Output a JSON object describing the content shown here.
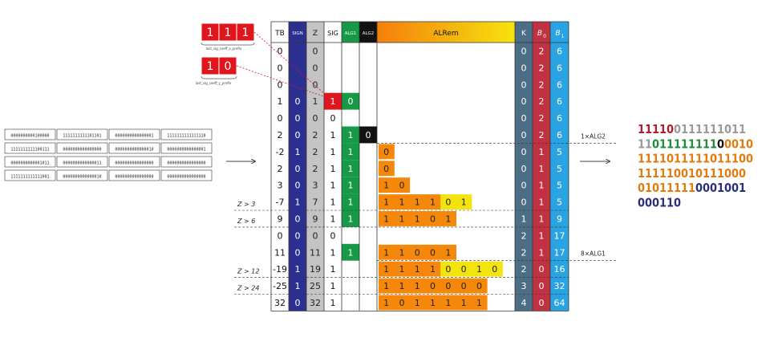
{
  "prefix_x": {
    "bits": [
      "1",
      "1",
      "1"
    ],
    "label": "last_sig_coeff_x_prefix"
  },
  "prefix_y": {
    "bits": [
      "1",
      "0"
    ],
    "label": "last_sig_coeff_y_prefix"
  },
  "input_table": [
    [
      "0000000000100000",
      "1111111111101101",
      "0000000000000001",
      "1111111111111110"
    ],
    [
      "1111111111100111",
      "0000000000000000",
      "0000000000000010",
      "0000000000000001"
    ],
    [
      "0000000000001011",
      "0000000000000011",
      "0000000000000000",
      "0000000000000000"
    ],
    [
      "1111111111111001",
      "0000000000000010",
      "0000000000000000",
      "0000000000000000"
    ]
  ],
  "headers": {
    "tb": "TB",
    "sign": "SIGN",
    "z": "Z",
    "sig": "SIG",
    "alg1": "ALG1",
    "alg2": "ALG2",
    "alrem": "ALRem",
    "k": "K",
    "b0": "B",
    "b0_sub": "0",
    "b1": "B",
    "b1_sub": "1"
  },
  "rows": [
    {
      "tb": "0",
      "sign": "",
      "z": "0",
      "sig": "",
      "alg1": "",
      "alg2": "",
      "alrem": [],
      "k": "0",
      "b0": "2",
      "b1": "6"
    },
    {
      "tb": "0",
      "sign": "",
      "z": "0",
      "sig": "",
      "alg1": "",
      "alg2": "",
      "alrem": [],
      "k": "0",
      "b0": "2",
      "b1": "6"
    },
    {
      "tb": "0",
      "sign": "",
      "z": "0",
      "sig": "",
      "alg1": "",
      "alg2": "",
      "alrem": [],
      "k": "0",
      "b0": "2",
      "b1": "6"
    },
    {
      "tb": "1",
      "sign": "0",
      "z": "1",
      "sig": "1",
      "alg1": "0",
      "alg2": "",
      "alrem": [],
      "k": "0",
      "b0": "2",
      "b1": "6"
    },
    {
      "tb": "0",
      "sign": "0",
      "z": "0",
      "sig": "0",
      "alg1": "",
      "alg2": "",
      "alrem": [],
      "k": "0",
      "b0": "2",
      "b1": "6"
    },
    {
      "tb": "2",
      "sign": "0",
      "z": "2",
      "sig": "1",
      "alg1": "1",
      "alg2": "0",
      "alrem": [],
      "k": "0",
      "b0": "2",
      "b1": "6"
    },
    {
      "tb": "-2",
      "sign": "1",
      "z": "2",
      "sig": "1",
      "alg1": "1",
      "alg2": "",
      "alrem": [
        "0"
      ],
      "k": "0",
      "b0": "1",
      "b1": "5"
    },
    {
      "tb": "2",
      "sign": "0",
      "z": "2",
      "sig": "1",
      "alg1": "1",
      "alg2": "",
      "alrem": [
        "0"
      ],
      "k": "0",
      "b0": "1",
      "b1": "5"
    },
    {
      "tb": "3",
      "sign": "0",
      "z": "3",
      "sig": "1",
      "alg1": "1",
      "alg2": "",
      "alrem": [
        "1",
        "0"
      ],
      "k": "0",
      "b0": "1",
      "b1": "5"
    },
    {
      "tb": "-7",
      "sign": "1",
      "z": "7",
      "sig": "1",
      "alg1": "1",
      "alg2": "",
      "alrem": [
        "1",
        "1",
        "1",
        "1",
        "0",
        "1"
      ],
      "k": "0",
      "b0": "1",
      "b1": "5"
    },
    {
      "tb": "9",
      "sign": "0",
      "z": "9",
      "sig": "1",
      "alg1": "1",
      "alg2": "",
      "alrem": [
        "1",
        "1",
        "1",
        "0",
        "1"
      ],
      "k": "1",
      "b0": "1",
      "b1": "9"
    },
    {
      "tb": "0",
      "sign": "0",
      "z": "0",
      "sig": "0",
      "alg1": "",
      "alg2": "",
      "alrem": [],
      "k": "2",
      "b0": "1",
      "b1": "17"
    },
    {
      "tb": "11",
      "sign": "0",
      "z": "11",
      "sig": "1",
      "alg1": "1",
      "alg2": "",
      "alrem": [
        "1",
        "1",
        "0",
        "0",
        "1"
      ],
      "k": "2",
      "b0": "1",
      "b1": "17"
    },
    {
      "tb": "-19",
      "sign": "1",
      "z": "19",
      "sig": "1",
      "alg1": "",
      "alg2": "",
      "alrem": [
        "1",
        "1",
        "1",
        "1",
        "0",
        "0",
        "1",
        "0"
      ],
      "k": "2",
      "b0": "0",
      "b1": "16"
    },
    {
      "tb": "-25",
      "sign": "1",
      "z": "25",
      "sig": "1",
      "alg1": "",
      "alg2": "",
      "alrem": [
        "1",
        "1",
        "1",
        "0",
        "0",
        "0",
        "0"
      ],
      "k": "3",
      "b0": "0",
      "b1": "32"
    },
    {
      "tb": "32",
      "sign": "0",
      "z": "32",
      "sig": "1",
      "alg1": "",
      "alg2": "",
      "alrem": [
        "1",
        "0",
        "1",
        "1",
        "1",
        "1",
        "1"
      ],
      "k": "4",
      "b0": "0",
      "b1": "64"
    }
  ],
  "z_labels": [
    "Z > 3",
    "Z > 6",
    "Z > 12",
    "Z > 24"
  ],
  "alg_labels": [
    "1×ALG2",
    "8×ALG1"
  ],
  "bitstream": [
    [
      {
        "t": "11110",
        "c": "#b01c2e"
      },
      {
        "t": "0111111011",
        "c": "#9a9a9a"
      }
    ],
    [
      {
        "t": "11",
        "c": "#9a9a9a"
      },
      {
        "t": "011111111",
        "c": "#1e8c3a"
      },
      {
        "t": "0",
        "c": "#111111"
      },
      {
        "t": "0010",
        "c": "#e07b10"
      }
    ],
    [
      {
        "t": "1111011111011100",
        "c": "#e07b10"
      }
    ],
    [
      {
        "t": "111110010111000",
        "c": "#e07b10"
      }
    ],
    [
      {
        "t": "01011111",
        "c": "#e07b10"
      },
      {
        "t": "0001001",
        "c": "#2a2f7a"
      }
    ],
    [
      {
        "t": "000110",
        "c": "#2a2f7a"
      }
    ]
  ],
  "colors": {
    "sign": "#2b2f8f",
    "z": "#c4c4c4",
    "sig": "#e0161e",
    "alg1": "#169a48",
    "alg2": "#111111",
    "alrem_orange": "#f5880a",
    "alrem_yellow": "#f4e40e",
    "k": "#4b6d86",
    "b0": "#c03142",
    "b1": "#2aa3e3"
  }
}
